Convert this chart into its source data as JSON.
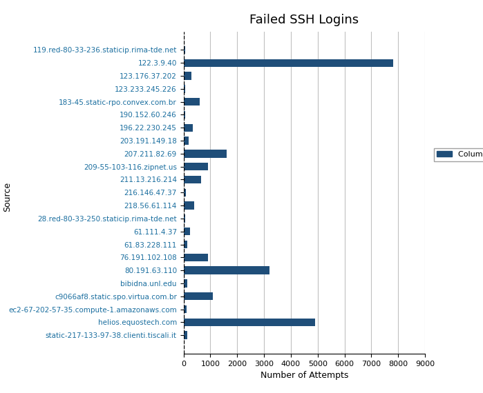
{
  "title": "Failed SSH Logins",
  "xlabel": "Number of Attempts",
  "ylabel": "Source",
  "legend_label": "Column B",
  "bar_color": "#1F4E79",
  "background_color": "#ffffff",
  "grid_color": "#c0c0c0",
  "label_color": "#1a6e9f",
  "categories": [
    "119.red-80-33-236.staticip.rima-tde.net",
    "122.3.9.40",
    "123.176.37.202",
    "123.233.245.226",
    "183-45.static-rpo.convex.com.br",
    "190.152.60.246",
    "196.22.230.245",
    "203.191.149.18",
    "207.211.82.69",
    "209-55-103-116.zipnet.us",
    "211.13.216.214",
    "216.146.47.37",
    "218.56.61.114",
    "28.red-80-33-250.staticip.rima-tde.net",
    "61.111.4.37",
    "61.83.228.111",
    "76.191.102.108",
    "80.191.63.110",
    "bibidna.unl.edu",
    "c9066af8.static.spo.virtua.com.br",
    "ec2-67-202-57-35.compute-1.amazonaws.com",
    "helios.equostech.com",
    "static-217-133-97-38.clienti.tiscali.it"
  ],
  "values": [
    50,
    7800,
    300,
    50,
    600,
    50,
    350,
    200,
    1600,
    900,
    650,
    75,
    400,
    50,
    250,
    150,
    900,
    3200,
    150,
    1100,
    100,
    4900,
    150
  ],
  "xlim": [
    0,
    9000
  ],
  "xticks": [
    0,
    1000,
    2000,
    3000,
    4000,
    5000,
    6000,
    7000,
    8000,
    9000
  ],
  "title_fontsize": 13,
  "label_fontsize": 7.5,
  "tick_fontsize": 8,
  "ylabel_fontsize": 9,
  "xlabel_fontsize": 9
}
